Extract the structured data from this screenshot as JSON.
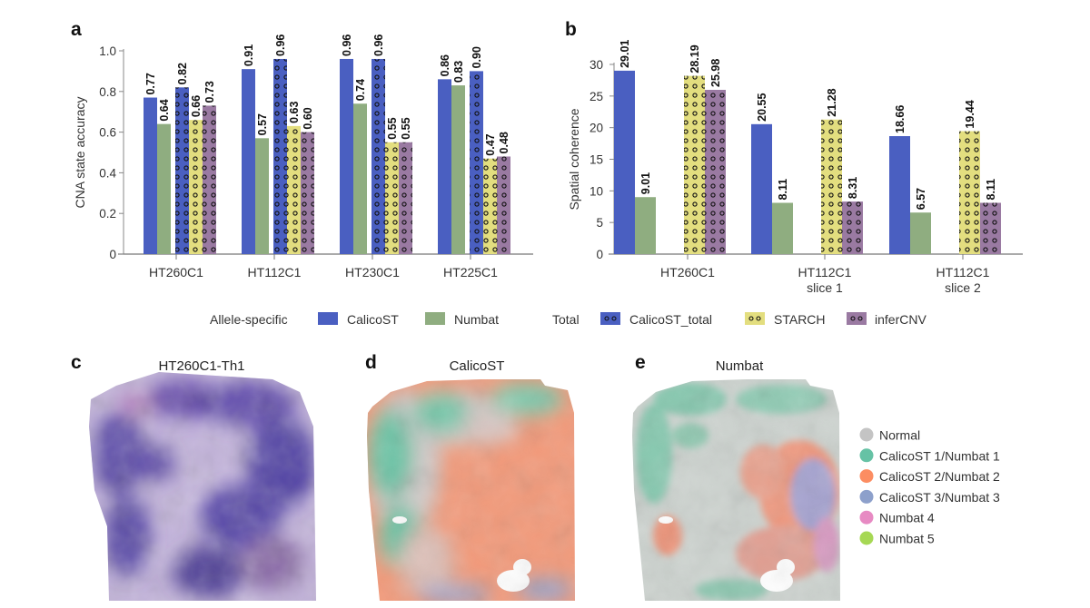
{
  "figure": {
    "panels": [
      {
        "letter": "a"
      },
      {
        "letter": "b"
      },
      {
        "letter": "c",
        "title": "HT260C1-Th1"
      },
      {
        "letter": "d",
        "title": "CalicoST"
      },
      {
        "letter": "e",
        "title": "Numbat"
      }
    ],
    "method_legend": {
      "group_allele_label": "Allele-specific",
      "group_total_label": "Total",
      "items": [
        {
          "name": "CalicoST",
          "color": "#4a5fc1",
          "pattern": "solid"
        },
        {
          "name": "Numbat",
          "color": "#8fad80",
          "pattern": "solid"
        },
        {
          "name": "CalicoST_total",
          "color": "#4a5fc1",
          "pattern": "dots"
        },
        {
          "name": "STARCH",
          "color": "#e3de7f",
          "pattern": "dots"
        },
        {
          "name": "inferCNV",
          "color": "#9a7aa2",
          "pattern": "dots"
        }
      ]
    },
    "clone_legend": {
      "items": [
        {
          "label": "Normal",
          "color": "#c4c4c4"
        },
        {
          "label": "CalicoST 1/Numbat 1",
          "color": "#66c2a5"
        },
        {
          "label": "CalicoST 2/Numbat 2",
          "color": "#fc8d62"
        },
        {
          "label": "CalicoST 3/Numbat 3",
          "color": "#8da0cb"
        },
        {
          "label": "Numbat 4",
          "color": "#e78ac3"
        },
        {
          "label": "Numbat 5",
          "color": "#a6d854"
        }
      ]
    }
  },
  "chart_data": [
    {
      "type": "bar",
      "panel": "a",
      "title": "",
      "xlabel": "",
      "ylabel": "CNA state accuracy",
      "ylim": [
        0,
        1.0
      ],
      "yticks": [
        0,
        0.2,
        0.4,
        0.6,
        0.8,
        1.0
      ],
      "ytick_labels": [
        "0",
        "0.2",
        "0.4",
        "0.6",
        "0.8",
        "1.0"
      ],
      "grid": false,
      "categories": [
        [
          "HT260C1"
        ],
        [
          "HT112C1"
        ],
        [
          "HT230C1"
        ],
        [
          "HT225C1"
        ]
      ],
      "series": [
        {
          "name": "CalicoST",
          "values": [
            0.77,
            0.91,
            0.96,
            0.86
          ],
          "labels": [
            "0.77",
            "0.91",
            "0.96",
            "0.86"
          ]
        },
        {
          "name": "Numbat",
          "values": [
            0.64,
            0.57,
            0.74,
            0.83
          ],
          "labels": [
            "0.64",
            "0.57",
            "0.74",
            "0.83"
          ]
        },
        {
          "name": "CalicoST_total",
          "values": [
            0.82,
            0.96,
            0.96,
            0.9
          ],
          "labels": [
            "0.82",
            "0.96",
            "0.96",
            "0.90"
          ]
        },
        {
          "name": "STARCH",
          "values": [
            0.66,
            0.63,
            0.55,
            0.47
          ],
          "labels": [
            "0.66",
            "0.63",
            "0.55",
            "0.47"
          ]
        },
        {
          "name": "inferCNV",
          "values": [
            0.73,
            0.6,
            0.55,
            0.48
          ],
          "labels": [
            "0.73",
            "0.60",
            "0.55",
            "0.48"
          ]
        }
      ]
    },
    {
      "type": "bar",
      "panel": "b",
      "title": "",
      "xlabel": "",
      "ylabel": "Spatial coherence",
      "ylim": [
        0,
        30
      ],
      "yticks": [
        0,
        5,
        10,
        15,
        20,
        25,
        30
      ],
      "ytick_labels": [
        "0",
        "5",
        "10",
        "15",
        "20",
        "25",
        "30"
      ],
      "grid": false,
      "categories": [
        [
          "HT260C1"
        ],
        [
          "HT112C1",
          "slice 1"
        ],
        [
          "HT112C1",
          "slice 2"
        ]
      ],
      "series": [
        {
          "name": "CalicoST",
          "values": [
            29.01,
            20.55,
            18.66
          ],
          "labels": [
            "29.01",
            "20.55",
            "18.66"
          ]
        },
        {
          "name": "Numbat",
          "values": [
            9.01,
            8.11,
            6.57
          ],
          "labels": [
            "9.01",
            "8.11",
            "6.57"
          ]
        },
        {
          "name": "STARCH",
          "values": [
            28.19,
            21.28,
            19.44
          ],
          "labels": [
            "28.19",
            "21.28",
            "19.44"
          ]
        },
        {
          "name": "inferCNV",
          "values": [
            25.98,
            8.31,
            8.11
          ],
          "labels": [
            "25.98",
            "8.31",
            "8.11"
          ]
        }
      ]
    }
  ]
}
